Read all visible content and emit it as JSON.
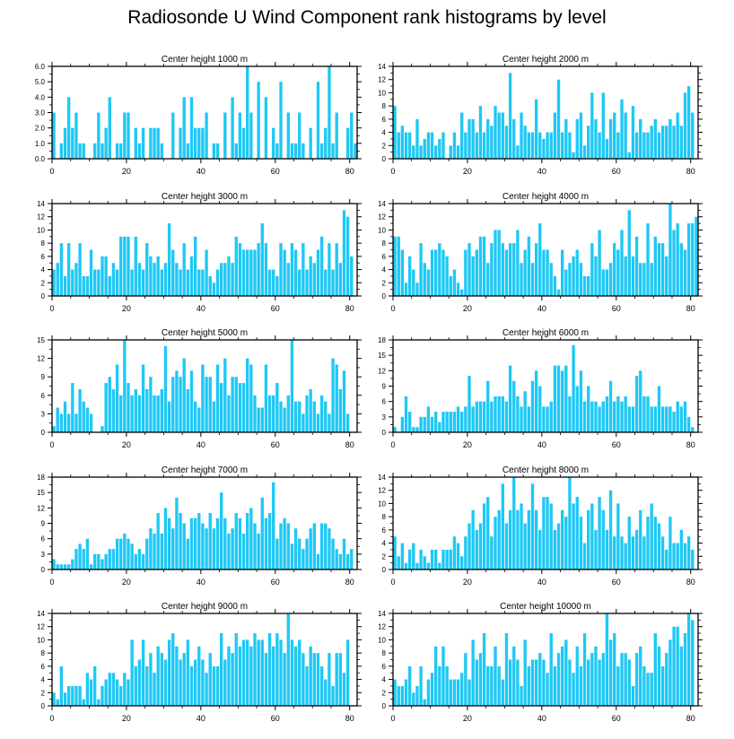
{
  "title": "Radiosonde U Wind Component rank histograms by level",
  "colors": {
    "bar": "#1ec8f5",
    "axis": "#000000",
    "background": "#ffffff"
  },
  "chart_data": [
    {
      "type": "bar",
      "title": "Center height 1000 m",
      "xlim": [
        0,
        82
      ],
      "ylim": [
        0,
        6
      ],
      "yticks": [
        "0.0",
        "1.0",
        "2.0",
        "3.0",
        "4.0",
        "5.0",
        "6.0"
      ],
      "ytick_values": [
        0,
        1,
        2,
        3,
        4,
        5,
        6
      ],
      "xticks": [
        0,
        20,
        40,
        60,
        80
      ],
      "values": [
        3,
        0,
        1,
        2,
        4,
        2,
        3,
        1,
        1,
        0,
        0,
        1,
        3,
        1,
        2,
        4,
        0,
        1,
        1,
        3,
        3,
        0,
        2,
        1,
        2,
        0,
        2,
        2,
        2,
        1,
        0,
        0,
        3,
        0,
        2,
        4,
        1,
        4,
        2,
        2,
        2,
        3,
        0,
        1,
        1,
        0,
        3,
        0,
        4,
        1,
        3,
        2,
        6,
        3,
        0,
        5,
        0,
        4,
        0,
        2,
        1,
        5,
        0,
        3,
        1,
        1,
        3,
        1,
        0,
        2,
        0,
        5,
        1,
        2,
        6,
        1,
        3,
        0,
        0,
        2,
        3,
        1
      ]
    },
    {
      "type": "bar",
      "title": "Center height 2000 m",
      "xlim": [
        0,
        82
      ],
      "ylim": [
        0,
        14
      ],
      "yticks": [
        "0",
        "2",
        "4",
        "6",
        "8",
        "10",
        "12",
        "14"
      ],
      "ytick_values": [
        0,
        2,
        4,
        6,
        8,
        10,
        12,
        14
      ],
      "xticks": [
        0,
        20,
        40,
        60,
        80
      ],
      "values": [
        8,
        4,
        5,
        4,
        4,
        2,
        6,
        2,
        3,
        4,
        4,
        2,
        3,
        4,
        0,
        2,
        4,
        2,
        7,
        4,
        6,
        6,
        4,
        8,
        4,
        6,
        5,
        8,
        7,
        7,
        5,
        13,
        6,
        2,
        7,
        5,
        4,
        4,
        9,
        4,
        3,
        4,
        4,
        7,
        12,
        4,
        6,
        4,
        1,
        6,
        7,
        2,
        5,
        10,
        6,
        4,
        10,
        3,
        6,
        7,
        4,
        9,
        7,
        1,
        8,
        4,
        6,
        4,
        4,
        5,
        6,
        4,
        5,
        5,
        6,
        5,
        7,
        5,
        10,
        11,
        7,
        0
      ]
    },
    {
      "type": "bar",
      "title": "Center height 3000 m",
      "xlim": [
        0,
        82
      ],
      "ylim": [
        0,
        14
      ],
      "yticks": [
        "0",
        "2",
        "4",
        "6",
        "8",
        "10",
        "12",
        "14"
      ],
      "ytick_values": [
        0,
        2,
        4,
        6,
        8,
        10,
        12,
        14
      ],
      "xticks": [
        0,
        20,
        40,
        60,
        80
      ],
      "values": [
        4,
        5,
        8,
        3,
        8,
        4,
        5,
        8,
        3,
        3,
        7,
        4,
        4,
        6,
        6,
        3,
        5,
        4,
        9,
        9,
        9,
        4,
        9,
        5,
        4,
        8,
        6,
        5,
        6,
        4,
        5,
        11,
        7,
        5,
        4,
        8,
        4,
        6,
        9,
        4,
        4,
        7,
        3,
        2,
        4,
        5,
        5,
        6,
        5,
        9,
        8,
        7,
        7,
        7,
        7,
        8,
        11,
        8,
        4,
        4,
        3,
        8,
        7,
        5,
        8,
        7,
        4,
        8,
        4,
        6,
        5,
        7,
        9,
        4,
        8,
        4,
        8,
        5,
        13,
        12,
        6,
        0
      ]
    },
    {
      "type": "bar",
      "title": "Center height 4000 m",
      "xlim": [
        0,
        82
      ],
      "ylim": [
        0,
        14
      ],
      "yticks": [
        "0",
        "2",
        "4",
        "6",
        "8",
        "10",
        "12",
        "14"
      ],
      "ytick_values": [
        0,
        2,
        4,
        6,
        8,
        10,
        12,
        14
      ],
      "xticks": [
        0,
        20,
        40,
        60,
        80
      ],
      "values": [
        9,
        9,
        7,
        2,
        6,
        4,
        2,
        8,
        5,
        4,
        7,
        7,
        8,
        7,
        6,
        3,
        4,
        2,
        1,
        7,
        8,
        6,
        7,
        9,
        9,
        5,
        8,
        10,
        10,
        8,
        7,
        8,
        8,
        10,
        5,
        7,
        9,
        5,
        8,
        11,
        7,
        7,
        5,
        3,
        1,
        7,
        4,
        5,
        6,
        7,
        5,
        3,
        3,
        8,
        6,
        10,
        4,
        4,
        5,
        8,
        7,
        10,
        6,
        13,
        6,
        9,
        5,
        5,
        11,
        5,
        9,
        8,
        8,
        6,
        14,
        10,
        11,
        8,
        7,
        11,
        11,
        12
      ]
    },
    {
      "type": "bar",
      "title": "Center height 5000 m",
      "xlim": [
        0,
        82
      ],
      "ylim": [
        0,
        15
      ],
      "yticks": [
        "0",
        "3",
        "6",
        "9",
        "12",
        "15"
      ],
      "ytick_values": [
        0,
        3,
        6,
        9,
        12,
        15
      ],
      "xticks": [
        0,
        20,
        40,
        60,
        80
      ],
      "values": [
        1,
        4,
        3,
        5,
        3,
        8,
        3,
        7,
        5,
        4,
        3,
        0,
        0,
        1,
        8,
        9,
        7,
        11,
        6,
        15,
        8,
        6,
        7,
        6,
        11,
        7,
        9,
        6,
        6,
        7,
        14,
        5,
        9,
        10,
        9,
        12,
        7,
        10,
        5,
        4,
        11,
        9,
        9,
        5,
        11,
        8,
        12,
        6,
        9,
        9,
        8,
        8,
        12,
        11,
        6,
        4,
        4,
        11,
        6,
        6,
        8,
        5,
        4,
        6,
        15,
        5,
        5,
        3,
        6,
        7,
        5,
        3,
        6,
        5,
        3,
        12,
        11,
        7,
        10,
        3,
        0,
        0
      ]
    },
    {
      "type": "bar",
      "title": "Center height 6000 m",
      "xlim": [
        0,
        82
      ],
      "ylim": [
        0,
        18
      ],
      "yticks": [
        "0",
        "3",
        "6",
        "9",
        "12",
        "15",
        "18"
      ],
      "ytick_values": [
        0,
        3,
        6,
        9,
        12,
        15,
        18
      ],
      "xticks": [
        0,
        20,
        40,
        60,
        80
      ],
      "values": [
        1,
        0,
        3,
        7,
        4,
        1,
        1,
        3,
        3,
        5,
        3,
        4,
        2,
        4,
        4,
        4,
        4,
        5,
        4,
        5,
        11,
        5,
        6,
        6,
        6,
        10,
        6,
        7,
        7,
        7,
        6,
        13,
        10,
        7,
        5,
        8,
        5,
        10,
        12,
        9,
        5,
        5,
        6,
        13,
        13,
        12,
        13,
        7,
        17,
        9,
        12,
        6,
        9,
        6,
        6,
        5,
        6,
        7,
        10,
        6,
        7,
        6,
        7,
        5,
        5,
        11,
        12,
        7,
        7,
        5,
        5,
        9,
        5,
        5,
        5,
        4,
        6,
        5,
        6,
        3,
        1,
        0
      ]
    },
    {
      "type": "bar",
      "title": "Center height 7000 m",
      "xlim": [
        0,
        82
      ],
      "ylim": [
        0,
        18
      ],
      "yticks": [
        "0",
        "3",
        "6",
        "9",
        "12",
        "15",
        "18"
      ],
      "ytick_values": [
        0,
        3,
        6,
        9,
        12,
        15,
        18
      ],
      "xticks": [
        0,
        20,
        40,
        60,
        80
      ],
      "values": [
        2,
        1,
        1,
        1,
        1,
        2,
        4,
        5,
        4,
        6,
        1,
        3,
        3,
        2,
        3,
        4,
        4,
        6,
        6,
        7,
        6,
        5,
        3,
        4,
        3,
        6,
        8,
        7,
        11,
        7,
        12,
        10,
        8,
        14,
        11,
        9,
        6,
        10,
        10,
        11,
        9,
        8,
        11,
        8,
        10,
        15,
        10,
        7,
        8,
        11,
        10,
        7,
        11,
        12,
        9,
        7,
        14,
        10,
        11,
        17,
        6,
        9,
        10,
        9,
        5,
        8,
        6,
        4,
        6,
        8,
        9,
        3,
        9,
        9,
        8,
        6,
        4,
        3,
        6,
        3,
        4,
        0
      ]
    },
    {
      "type": "bar",
      "title": "Center height 8000 m",
      "xlim": [
        0,
        82
      ],
      "ylim": [
        0,
        14
      ],
      "yticks": [
        "0",
        "2",
        "4",
        "6",
        "8",
        "10",
        "12",
        "14"
      ],
      "ytick_values": [
        0,
        2,
        4,
        6,
        8,
        10,
        12,
        14
      ],
      "xticks": [
        0,
        20,
        40,
        60,
        80
      ],
      "values": [
        5,
        2,
        4,
        1,
        3,
        4,
        1,
        3,
        2,
        1,
        3,
        3,
        1,
        3,
        3,
        3,
        5,
        4,
        2,
        5,
        7,
        9,
        6,
        7,
        10,
        11,
        5,
        8,
        9,
        13,
        7,
        9,
        14,
        9,
        10,
        7,
        9,
        13,
        9,
        6,
        11,
        11,
        10,
        6,
        7,
        9,
        8,
        14,
        10,
        11,
        8,
        4,
        9,
        10,
        6,
        11,
        9,
        6,
        12,
        5,
        10,
        5,
        4,
        8,
        5,
        6,
        9,
        5,
        8,
        10,
        8,
        7,
        5,
        3,
        8,
        4,
        4,
        6,
        4,
        5,
        3,
        0
      ]
    },
    {
      "type": "bar",
      "title": "Center height 9000 m",
      "xlim": [
        0,
        82
      ],
      "ylim": [
        0,
        14
      ],
      "yticks": [
        "0",
        "2",
        "4",
        "6",
        "8",
        "10",
        "12",
        "14"
      ],
      "ytick_values": [
        0,
        2,
        4,
        6,
        8,
        10,
        12,
        14
      ],
      "xticks": [
        0,
        20,
        40,
        60,
        80
      ],
      "values": [
        2,
        1,
        6,
        2,
        3,
        3,
        3,
        3,
        1,
        5,
        4,
        6,
        1,
        3,
        4,
        5,
        5,
        4,
        3,
        5,
        4,
        10,
        6,
        7,
        10,
        6,
        8,
        5,
        9,
        8,
        7,
        10,
        11,
        9,
        7,
        8,
        10,
        6,
        7,
        9,
        7,
        5,
        8,
        6,
        6,
        11,
        7,
        9,
        8,
        11,
        9,
        10,
        10,
        9,
        11,
        10,
        10,
        8,
        11,
        9,
        11,
        10,
        8,
        14,
        10,
        9,
        10,
        8,
        6,
        9,
        8,
        8,
        6,
        4,
        8,
        3,
        8,
        8,
        5,
        10,
        0,
        0
      ]
    },
    {
      "type": "bar",
      "title": "Center height 10000 m",
      "xlim": [
        0,
        82
      ],
      "ylim": [
        0,
        14
      ],
      "yticks": [
        "0",
        "2",
        "4",
        "6",
        "8",
        "10",
        "12",
        "14"
      ],
      "ytick_values": [
        0,
        2,
        4,
        6,
        8,
        10,
        12,
        14
      ],
      "xticks": [
        0,
        20,
        40,
        60,
        80
      ],
      "values": [
        4,
        3,
        3,
        4,
        6,
        2,
        3,
        6,
        1,
        4,
        5,
        9,
        6,
        9,
        6,
        4,
        4,
        4,
        5,
        8,
        4,
        10,
        7,
        8,
        11,
        6,
        6,
        9,
        6,
        4,
        11,
        7,
        9,
        7,
        3,
        10,
        6,
        7,
        7,
        8,
        7,
        5,
        11,
        6,
        8,
        9,
        10,
        7,
        5,
        9,
        6,
        11,
        7,
        8,
        9,
        7,
        8,
        14,
        10,
        11,
        6,
        8,
        8,
        7,
        3,
        8,
        9,
        6,
        5,
        5,
        11,
        9,
        6,
        8,
        10,
        12,
        12,
        9,
        11,
        14,
        13,
        0
      ]
    }
  ]
}
